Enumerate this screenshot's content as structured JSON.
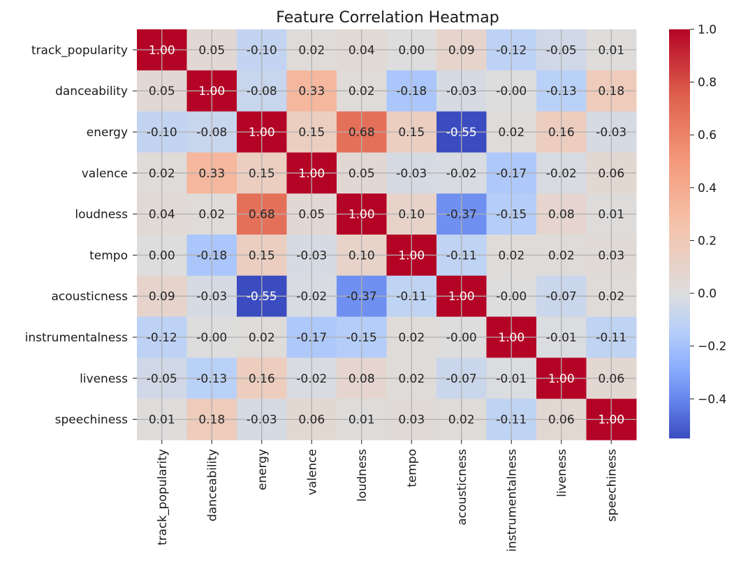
{
  "chart_data": {
    "type": "heatmap",
    "title": "Feature Correlation Heatmap",
    "colormap": "coolwarm",
    "grid": true,
    "xlabels": [
      "track_popularity",
      "danceability",
      "energy",
      "valence",
      "loudness",
      "tempo",
      "acousticness",
      "instrumentalness",
      "liveness",
      "speechiness"
    ],
    "ylabels": [
      "track_popularity",
      "danceability",
      "energy",
      "valence",
      "loudness",
      "tempo",
      "acousticness",
      "instrumentalness",
      "liveness",
      "speechiness"
    ],
    "values": [
      [
        1.0,
        0.05,
        -0.1,
        0.02,
        0.04,
        0.0,
        0.09,
        -0.12,
        -0.05,
        0.01
      ],
      [
        0.05,
        1.0,
        -0.08,
        0.33,
        0.02,
        -0.18,
        -0.03,
        -0.0,
        -0.13,
        0.18
      ],
      [
        -0.1,
        -0.08,
        1.0,
        0.15,
        0.68,
        0.15,
        -0.55,
        0.02,
        0.16,
        -0.03
      ],
      [
        0.02,
        0.33,
        0.15,
        1.0,
        0.05,
        -0.03,
        -0.02,
        -0.17,
        -0.02,
        0.06
      ],
      [
        0.04,
        0.02,
        0.68,
        0.05,
        1.0,
        0.1,
        -0.37,
        -0.15,
        0.08,
        0.01
      ],
      [
        0.0,
        -0.18,
        0.15,
        -0.03,
        0.1,
        1.0,
        -0.11,
        0.02,
        0.02,
        0.03
      ],
      [
        0.09,
        -0.03,
        -0.55,
        -0.02,
        -0.37,
        -0.11,
        1.0,
        -0.0,
        -0.07,
        0.02
      ],
      [
        -0.12,
        -0.0,
        0.02,
        -0.17,
        -0.15,
        0.02,
        -0.0,
        1.0,
        -0.01,
        -0.11
      ],
      [
        -0.05,
        -0.13,
        0.16,
        -0.02,
        0.08,
        0.02,
        -0.07,
        -0.01,
        1.0,
        0.06
      ],
      [
        0.01,
        0.18,
        -0.03,
        0.06,
        0.01,
        0.03,
        0.02,
        -0.11,
        0.06,
        1.0
      ]
    ],
    "labels": [
      [
        "1.00",
        "0.05",
        "-0.10",
        "0.02",
        "0.04",
        "0.00",
        "0.09",
        "-0.12",
        "-0.05",
        "0.01"
      ],
      [
        "0.05",
        "1.00",
        "-0.08",
        "0.33",
        "0.02",
        "-0.18",
        "-0.03",
        "-0.00",
        "-0.13",
        "0.18"
      ],
      [
        "-0.10",
        "-0.08",
        "1.00",
        "0.15",
        "0.68",
        "0.15",
        "-0.55",
        "0.02",
        "0.16",
        "-0.03"
      ],
      [
        "0.02",
        "0.33",
        "0.15",
        "1.00",
        "0.05",
        "-0.03",
        "-0.02",
        "-0.17",
        "-0.02",
        "0.06"
      ],
      [
        "0.04",
        "0.02",
        "0.68",
        "0.05",
        "1.00",
        "0.10",
        "-0.37",
        "-0.15",
        "0.08",
        "0.01"
      ],
      [
        "0.00",
        "-0.18",
        "0.15",
        "-0.03",
        "0.10",
        "1.00",
        "-0.11",
        "0.02",
        "0.02",
        "0.03"
      ],
      [
        "0.09",
        "-0.03",
        "-0.55",
        "-0.02",
        "-0.37",
        "-0.11",
        "1.00",
        "-0.00",
        "-0.07",
        "0.02"
      ],
      [
        "-0.12",
        "-0.00",
        "0.02",
        "-0.17",
        "-0.15",
        "0.02",
        "-0.00",
        "1.00",
        "-0.01",
        "-0.11"
      ],
      [
        "-0.05",
        "-0.13",
        "0.16",
        "-0.02",
        "0.08",
        "0.02",
        "-0.07",
        "-0.01",
        "1.00",
        "0.06"
      ],
      [
        "0.01",
        "0.18",
        "-0.03",
        "0.06",
        "0.01",
        "0.03",
        "0.02",
        "-0.11",
        "0.06",
        "1.00"
      ]
    ],
    "colorbar": {
      "range": [
        -0.55,
        1.0
      ],
      "ticks": [
        -0.4,
        -0.2,
        0.0,
        0.2,
        0.4,
        0.6,
        0.8,
        1.0
      ],
      "tick_labels": [
        "−0.4",
        "−0.2",
        "0.0",
        "0.2",
        "0.4",
        "0.6",
        "0.8",
        "1.0"
      ]
    }
  }
}
